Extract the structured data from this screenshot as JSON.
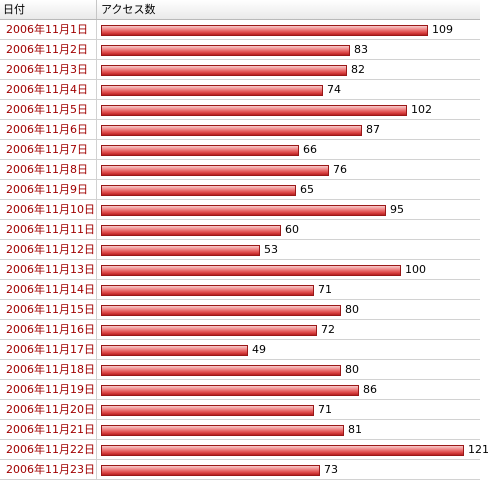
{
  "header": {
    "date_label": "日付",
    "count_label": "アクセス数"
  },
  "colors": {
    "date_text": "#a10000",
    "bar_fill": "#df4a4a",
    "bar_border": "#9a1818"
  },
  "chart_data": {
    "type": "bar",
    "orientation": "horizontal",
    "title": "",
    "xlabel": "アクセス数",
    "ylabel": "日付",
    "categories": [
      "2006年11月1日",
      "2006年11月2日",
      "2006年11月3日",
      "2006年11月4日",
      "2006年11月5日",
      "2006年11月6日",
      "2006年11月7日",
      "2006年11月8日",
      "2006年11月9日",
      "2006年11月10日",
      "2006年11月11日",
      "2006年11月12日",
      "2006年11月13日",
      "2006年11月14日",
      "2006年11月15日",
      "2006年11月16日",
      "2006年11月17日",
      "2006年11月18日",
      "2006年11月19日",
      "2006年11月20日",
      "2006年11月21日",
      "2006年11月22日",
      "2006年11月23日"
    ],
    "values": [
      109,
      83,
      82,
      74,
      102,
      87,
      66,
      76,
      65,
      95,
      60,
      53,
      100,
      71,
      80,
      72,
      49,
      80,
      86,
      71,
      81,
      121,
      73
    ],
    "xlim": [
      0,
      121
    ],
    "grid": false,
    "data_labels": true
  }
}
